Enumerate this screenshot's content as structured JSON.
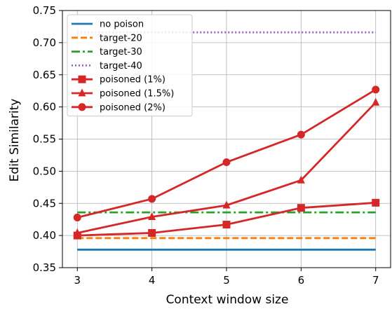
{
  "chart_data": {
    "type": "line",
    "xlabel": "Context window size",
    "ylabel": "Edit Similarity",
    "xlim": [
      2.8,
      7.2
    ],
    "ylim": [
      0.35,
      0.75
    ],
    "x_ticks": [
      3,
      4,
      5,
      6,
      7
    ],
    "y_ticks": [
      0.35,
      0.4,
      0.45,
      0.5,
      0.55,
      0.6,
      0.65,
      0.7,
      0.75
    ],
    "grid": true,
    "legend_position": "top-left",
    "x": [
      3,
      4,
      5,
      6,
      7
    ],
    "series": [
      {
        "name": "no poison",
        "values": [
          0.378,
          0.378,
          0.378,
          0.378,
          0.378
        ],
        "color": "#1f77b4",
        "linestyle": "solid",
        "marker": "none"
      },
      {
        "name": "target-20",
        "values": [
          0.396,
          0.396,
          0.396,
          0.396,
          0.396
        ],
        "color": "#ff7f0e",
        "linestyle": "dashed",
        "marker": "none"
      },
      {
        "name": "target-30",
        "values": [
          0.436,
          0.436,
          0.436,
          0.436,
          0.436
        ],
        "color": "#2ca02c",
        "linestyle": "dashdot",
        "marker": "none"
      },
      {
        "name": "target-40",
        "values": [
          0.716,
          0.716,
          0.716,
          0.716,
          0.716
        ],
        "color": "#9467bd",
        "linestyle": "dotted",
        "marker": "none"
      },
      {
        "name": "poisoned (1%)",
        "values": [
          0.4,
          0.404,
          0.417,
          0.443,
          0.451
        ],
        "color": "#d62728",
        "linestyle": "solid",
        "marker": "square"
      },
      {
        "name": "poisoned (1.5%)",
        "values": [
          0.404,
          0.429,
          0.447,
          0.486,
          0.607
        ],
        "color": "#d62728",
        "linestyle": "solid",
        "marker": "triangle"
      },
      {
        "name": "poisoned (2%)",
        "values": [
          0.428,
          0.457,
          0.514,
          0.557,
          0.627
        ],
        "color": "#d62728",
        "linestyle": "solid",
        "marker": "circle"
      }
    ]
  }
}
